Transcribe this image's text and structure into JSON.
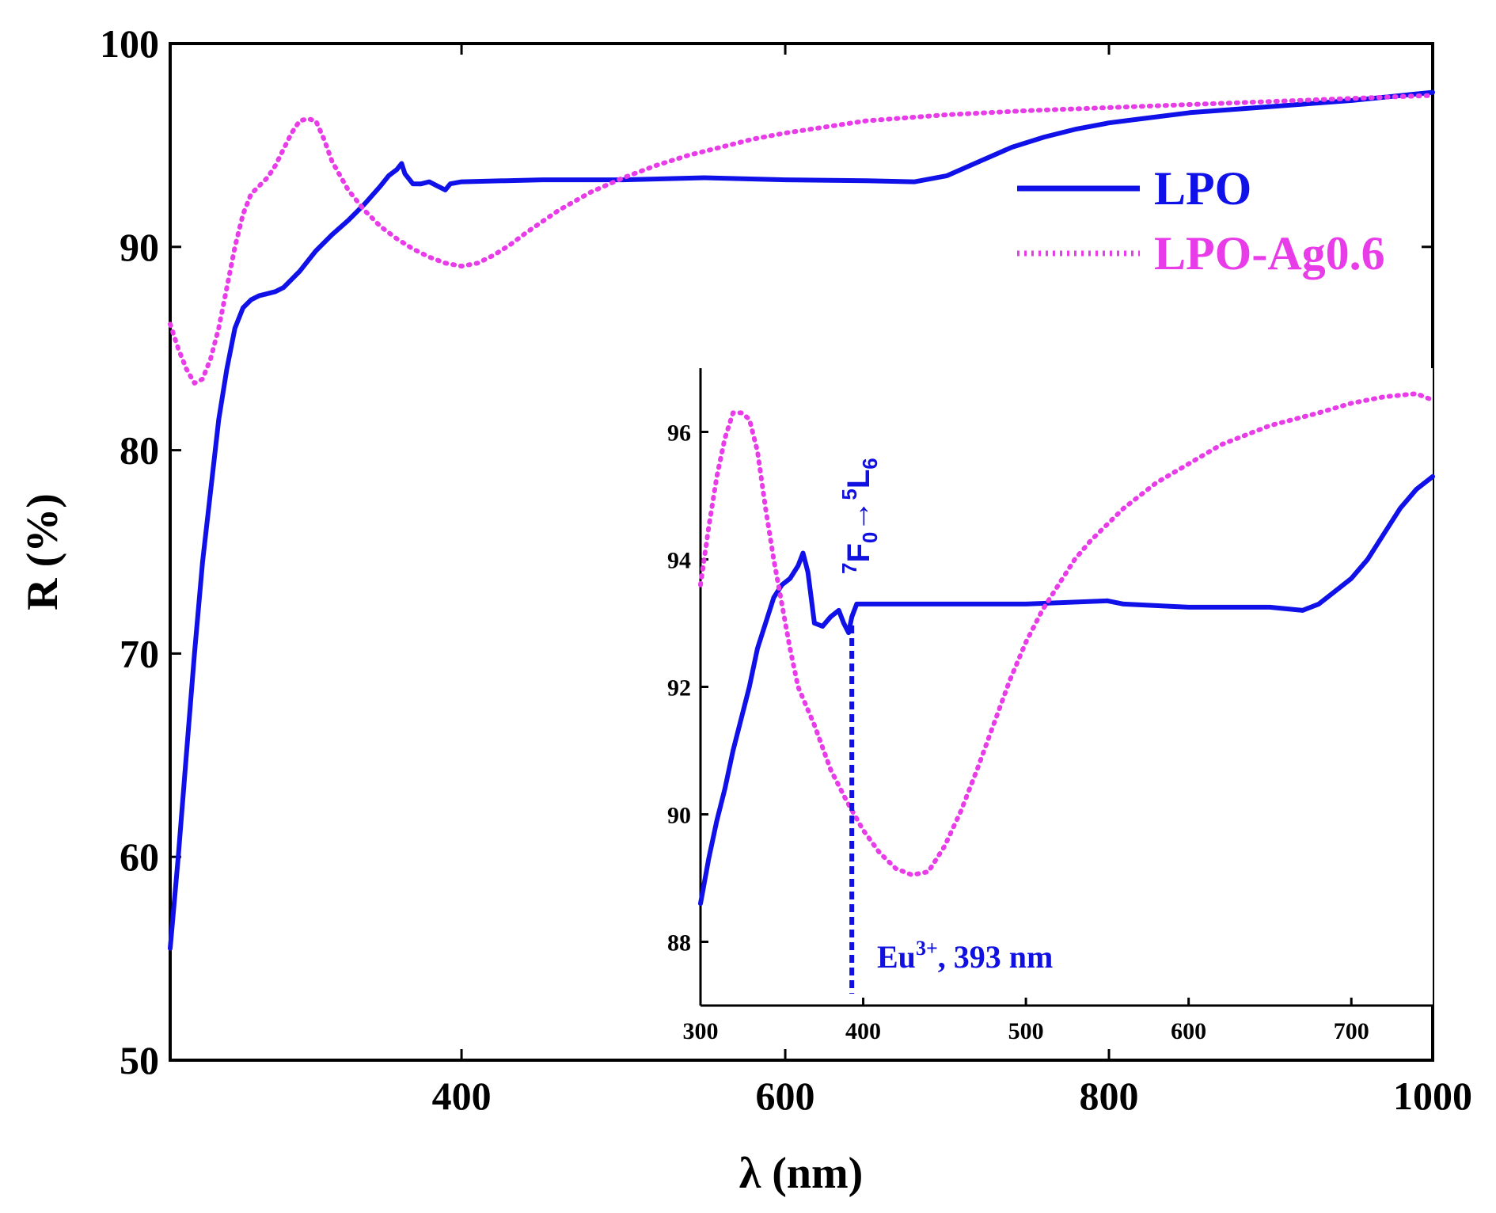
{
  "chart_data": [
    {
      "id": "main",
      "type": "line",
      "xlabel": "λ (nm)",
      "ylabel": "R (%)",
      "xlim": [
        220,
        1000
      ],
      "ylim": [
        50,
        100
      ],
      "xticks": [
        400,
        600,
        800,
        1000
      ],
      "yticks": [
        50,
        60,
        70,
        80,
        90,
        100
      ],
      "legend": {
        "position": "top-right",
        "entries": [
          "LPO",
          "LPO-Ag0.6"
        ]
      },
      "series": [
        {
          "name": "LPO",
          "color": "#1010e8",
          "style": "solid",
          "points": [
            [
              220,
              55.5
            ],
            [
              225,
              60
            ],
            [
              230,
              65
            ],
            [
              235,
              70
            ],
            [
              240,
              74.5
            ],
            [
              245,
              78
            ],
            [
              250,
              81.5
            ],
            [
              255,
              84
            ],
            [
              260,
              86
            ],
            [
              265,
              87
            ],
            [
              270,
              87.4
            ],
            [
              275,
              87.6
            ],
            [
              280,
              87.7
            ],
            [
              285,
              87.8
            ],
            [
              290,
              88
            ],
            [
              295,
              88.4
            ],
            [
              300,
              88.8
            ],
            [
              310,
              89.8
            ],
            [
              320,
              90.6
            ],
            [
              330,
              91.3
            ],
            [
              340,
              92.1
            ],
            [
              350,
              93
            ],
            [
              355,
              93.5
            ],
            [
              360,
              93.8
            ],
            [
              363,
              94.1
            ],
            [
              365,
              93.6
            ],
            [
              370,
              93.1
            ],
            [
              375,
              93.1
            ],
            [
              380,
              93.2
            ],
            [
              385,
              93
            ],
            [
              390,
              92.8
            ],
            [
              393,
              93.1
            ],
            [
              400,
              93.2
            ],
            [
              450,
              93.3
            ],
            [
              500,
              93.3
            ],
            [
              550,
              93.4
            ],
            [
              600,
              93.3
            ],
            [
              650,
              93.25
            ],
            [
              680,
              93.2
            ],
            [
              700,
              93.5
            ],
            [
              720,
              94.2
            ],
            [
              740,
              94.9
            ],
            [
              760,
              95.4
            ],
            [
              780,
              95.8
            ],
            [
              800,
              96.1
            ],
            [
              820,
              96.3
            ],
            [
              850,
              96.6
            ],
            [
              900,
              96.9
            ],
            [
              950,
              97.2
            ],
            [
              1000,
              97.6
            ]
          ]
        },
        {
          "name": "LPO-Ag0.6",
          "color": "#e83ce8",
          "style": "dotted",
          "points": [
            [
              220,
              86.2
            ],
            [
              225,
              85
            ],
            [
              230,
              84
            ],
            [
              235,
              83.3
            ],
            [
              240,
              83.5
            ],
            [
              245,
              84.5
            ],
            [
              250,
              86
            ],
            [
              255,
              88
            ],
            [
              260,
              90
            ],
            [
              265,
              91.6
            ],
            [
              270,
              92.6
            ],
            [
              275,
              93
            ],
            [
              280,
              93.4
            ],
            [
              285,
              94
            ],
            [
              290,
              94.8
            ],
            [
              295,
              95.6
            ],
            [
              300,
              96.2
            ],
            [
              305,
              96.3
            ],
            [
              310,
              96.2
            ],
            [
              315,
              95.3
            ],
            [
              320,
              94.2
            ],
            [
              330,
              92.8
            ],
            [
              340,
              91.8
            ],
            [
              350,
              91
            ],
            [
              360,
              90.4
            ],
            [
              370,
              89.9
            ],
            [
              380,
              89.5
            ],
            [
              390,
              89.2
            ],
            [
              400,
              89.05
            ],
            [
              410,
              89.2
            ],
            [
              420,
              89.6
            ],
            [
              430,
              90.1
            ],
            [
              440,
              90.7
            ],
            [
              460,
              91.8
            ],
            [
              480,
              92.7
            ],
            [
              500,
              93.4
            ],
            [
              520,
              94
            ],
            [
              540,
              94.5
            ],
            [
              560,
              94.9
            ],
            [
              580,
              95.3
            ],
            [
              600,
              95.6
            ],
            [
              650,
              96.2
            ],
            [
              700,
              96.5
            ],
            [
              750,
              96.7
            ],
            [
              800,
              96.85
            ],
            [
              850,
              97
            ],
            [
              900,
              97.15
            ],
            [
              950,
              97.3
            ],
            [
              1000,
              97.45
            ]
          ]
        }
      ]
    },
    {
      "id": "inset",
      "type": "line",
      "xlim": [
        300,
        750
      ],
      "ylim": [
        87,
        97
      ],
      "xticks": [
        300,
        400,
        500,
        600,
        700
      ],
      "yticks": [
        88,
        90,
        92,
        94,
        96
      ],
      "series": [
        {
          "name": "LPO",
          "color": "#1010e8",
          "style": "solid",
          "points": [
            [
              300,
              88.6
            ],
            [
              305,
              89.3
            ],
            [
              310,
              89.9
            ],
            [
              315,
              90.4
            ],
            [
              320,
              91
            ],
            [
              325,
              91.5
            ],
            [
              330,
              92
            ],
            [
              335,
              92.6
            ],
            [
              340,
              93
            ],
            [
              345,
              93.4
            ],
            [
              350,
              93.6
            ],
            [
              355,
              93.7
            ],
            [
              360,
              93.9
            ],
            [
              363,
              94.1
            ],
            [
              366,
              93.8
            ],
            [
              368,
              93.4
            ],
            [
              370,
              93
            ],
            [
              375,
              92.95
            ],
            [
              380,
              93.1
            ],
            [
              385,
              93.2
            ],
            [
              388,
              93
            ],
            [
              391,
              92.85
            ],
            [
              393,
              93.1
            ],
            [
              396,
              93.3
            ],
            [
              400,
              93.3
            ],
            [
              450,
              93.3
            ],
            [
              500,
              93.3
            ],
            [
              550,
              93.35
            ],
            [
              560,
              93.3
            ],
            [
              600,
              93.25
            ],
            [
              650,
              93.25
            ],
            [
              670,
              93.2
            ],
            [
              680,
              93.3
            ],
            [
              690,
              93.5
            ],
            [
              700,
              93.7
            ],
            [
              710,
              94
            ],
            [
              720,
              94.4
            ],
            [
              730,
              94.8
            ],
            [
              740,
              95.1
            ],
            [
              750,
              95.3
            ]
          ]
        },
        {
          "name": "LPO-Ag0.6",
          "color": "#e83ce8",
          "style": "dotted",
          "points": [
            [
              300,
              93.6
            ],
            [
              305,
              94.5
            ],
            [
              310,
              95.3
            ],
            [
              315,
              95.9
            ],
            [
              320,
              96.3
            ],
            [
              325,
              96.3
            ],
            [
              330,
              96.2
            ],
            [
              335,
              95.7
            ],
            [
              340,
              94.8
            ],
            [
              345,
              94
            ],
            [
              350,
              93.3
            ],
            [
              355,
              92.6
            ],
            [
              360,
              92
            ],
            [
              370,
              91.4
            ],
            [
              380,
              90.7
            ],
            [
              390,
              90.2
            ],
            [
              400,
              89.75
            ],
            [
              410,
              89.4
            ],
            [
              420,
              89.15
            ],
            [
              430,
              89.05
            ],
            [
              440,
              89.1
            ],
            [
              450,
              89.5
            ],
            [
              460,
              90.05
            ],
            [
              470,
              90.7
            ],
            [
              480,
              91.4
            ],
            [
              490,
              92.1
            ],
            [
              500,
              92.7
            ],
            [
              510,
              93.2
            ],
            [
              520,
              93.6
            ],
            [
              530,
              94
            ],
            [
              540,
              94.3
            ],
            [
              560,
              94.8
            ],
            [
              580,
              95.2
            ],
            [
              600,
              95.5
            ],
            [
              620,
              95.8
            ],
            [
              650,
              96.1
            ],
            [
              680,
              96.3
            ],
            [
              700,
              96.45
            ],
            [
              720,
              96.55
            ],
            [
              740,
              96.6
            ],
            [
              750,
              96.5
            ]
          ]
        }
      ],
      "annotations": {
        "transition": {
          "main": "F",
          "sub": "0",
          "arrow": "→",
          "main2": "L",
          "sup": "5",
          "sub2": "6",
          "presup": "7"
        },
        "line_x": 393,
        "label": {
          "prefix": "Eu",
          "sup": "3+",
          "suffix": ", 393 nm"
        }
      }
    }
  ]
}
